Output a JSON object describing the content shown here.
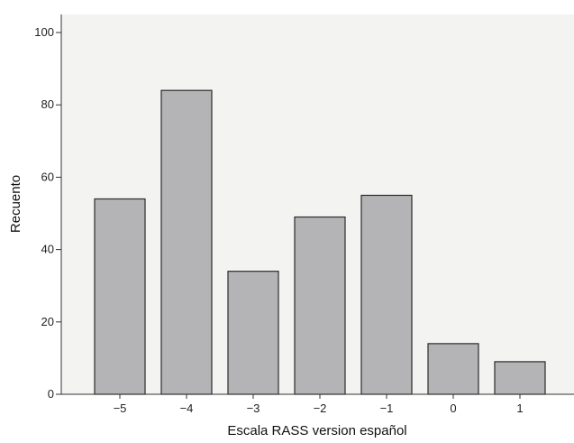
{
  "chart_data": {
    "type": "bar",
    "categories": [
      "−5",
      "−4",
      "−3",
      "−2",
      "−1",
      "0",
      "1"
    ],
    "values": [
      54,
      84,
      34,
      49,
      55,
      14,
      9
    ],
    "xlabel": "Escala RASS version español",
    "ylabel": "Recuento",
    "ylim": [
      0,
      105
    ],
    "yticks": [
      0,
      20,
      40,
      60,
      80,
      100
    ],
    "grid": false,
    "colors": {
      "plot_background": "#f3f3f1",
      "bar_fill": "#b4b4b6",
      "bar_stroke": "#2b2b2b",
      "axis": "#333333"
    }
  }
}
